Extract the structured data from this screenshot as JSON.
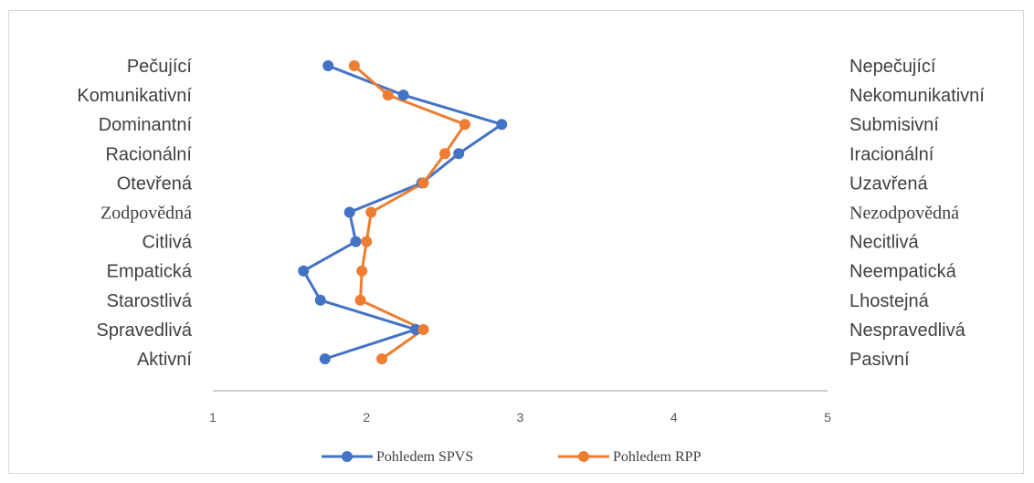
{
  "chart_data": {
    "type": "line",
    "orientation": "horizontal-values-vertical-categories",
    "title": "",
    "xlim": [
      1,
      5
    ],
    "x_ticks": [
      "1",
      "2",
      "3",
      "4",
      "5"
    ],
    "grid": false,
    "legend_position": "bottom",
    "left_labels": [
      "Pečující",
      "Komunikativní",
      "Dominantní",
      "Racionální",
      "Otevřená",
      "Zodpovědná",
      "Citlivá",
      "Empatická",
      "Starostlivá",
      "Spravedlivá",
      "Aktivní"
    ],
    "right_labels": [
      "Nepečující",
      "Nekomunikativní",
      "Submisivní",
      "Iracionální",
      "Uzavřená",
      "Nezodpovědná",
      "Necitlivá",
      "Neempatická",
      "Lhostejná",
      "Nespravedlivá",
      "Pasivní"
    ],
    "serif_rows": [
      5
    ],
    "series": [
      {
        "name": "Pohledem SPVS",
        "color": "#4472c4",
        "values": [
          1.75,
          2.24,
          2.88,
          2.6,
          2.36,
          1.89,
          1.93,
          1.59,
          1.7,
          2.32,
          1.73
        ]
      },
      {
        "name": "Pohledem RPP",
        "color": "#ed7d31",
        "values": [
          1.92,
          2.14,
          2.64,
          2.51,
          2.37,
          2.03,
          2.0,
          1.97,
          1.96,
          2.37,
          2.1
        ]
      }
    ]
  }
}
